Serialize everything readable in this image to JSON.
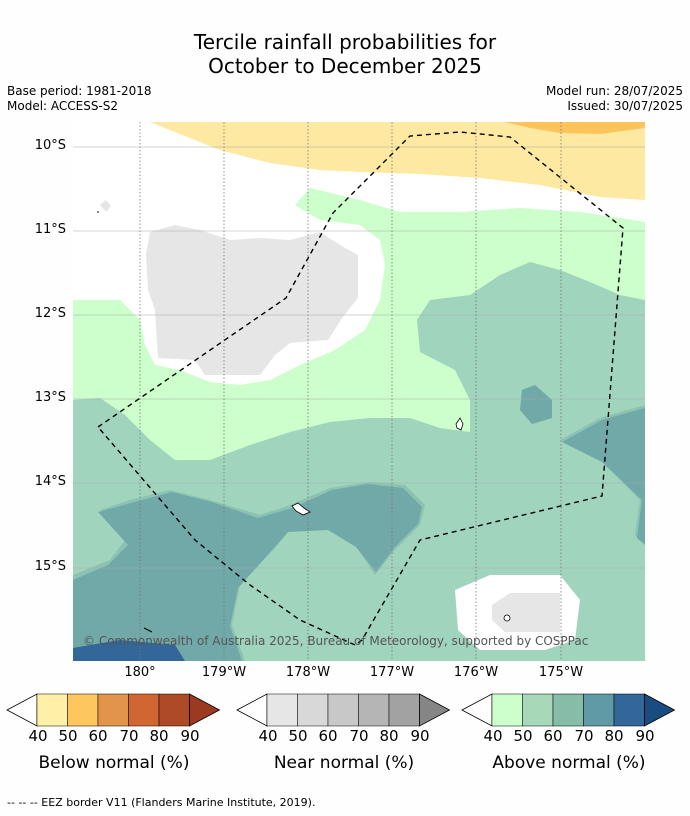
{
  "title": {
    "line1": "Tercile rainfall probabilities for",
    "line2": "October to December 2025"
  },
  "meta": {
    "base_period": "Base period: 1981-2018",
    "model": "Model: ACCESS-S2",
    "model_run": "Model run: 28/07/2025",
    "issued": "Issued: 30/07/2025"
  },
  "map": {
    "lat_labels": [
      "10°S",
      "11°S",
      "12°S",
      "13°S",
      "14°S",
      "15°S"
    ],
    "lon_labels": [
      "180°",
      "179°W",
      "178°W",
      "177°W",
      "176°W",
      "175°W"
    ],
    "copyright": "© Commonwealth of Australia 2025, Bureau of Meteorology, supported by COSPPac",
    "colors": {
      "below_40": "#fde9a1",
      "below_50": "#fdc45c",
      "near_40": "#e6e6e6",
      "above_40": "#ccffcc",
      "above_50": "#a0d4bc",
      "above_60": "#8cc2b1",
      "above_70": "#71a8a8",
      "above_80": "#336699",
      "above_90": "#1b4f80",
      "land": "#ffffff"
    }
  },
  "colorbars": [
    {
      "title": "Below normal (%)",
      "ticks": [
        "40",
        "50",
        "60",
        "70",
        "80",
        "90"
      ],
      "colors": [
        "#fef0a6",
        "#fdc65f",
        "#e2944a",
        "#d06632",
        "#ae4a27",
        "#9c3a21"
      ]
    },
    {
      "title": "Near normal (%)",
      "ticks": [
        "40",
        "50",
        "60",
        "70",
        "80",
        "90"
      ],
      "colors": [
        "#e6e6e6",
        "#d8d8d8",
        "#c8c8c8",
        "#b5b5b5",
        "#a2a2a2",
        "#858585"
      ]
    },
    {
      "title": "Above normal (%)",
      "ticks": [
        "40",
        "50",
        "60",
        "70",
        "80",
        "90"
      ],
      "colors": [
        "#ccffcc",
        "#a7d8b8",
        "#87bca8",
        "#5f9aa6",
        "#336699",
        "#1a4c82"
      ]
    }
  ],
  "footer": "--  --  -- EEZ border V11 (Flanders Marine Institute, 2019)."
}
